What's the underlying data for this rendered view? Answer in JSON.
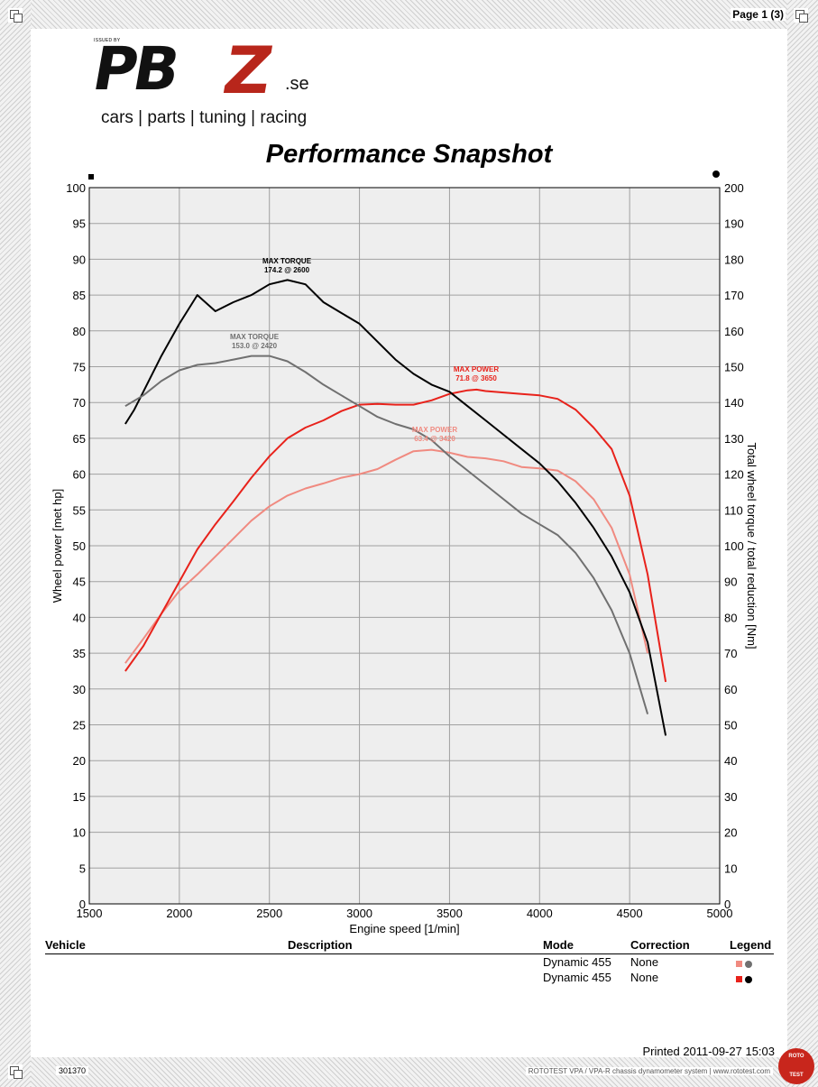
{
  "page": {
    "label": "Page 1 (3)"
  },
  "logo": {
    "issued_by": "ISSUED BY",
    "brand_main": "PB",
    "brand_accent": "Z",
    "brand_suffix": ".se",
    "tagline": "cars | parts | tuning | racing"
  },
  "colors": {
    "power_light": "#f08a80",
    "power_dark": "#e8221b",
    "torque_dark": "#000000",
    "torque_light": "#707070",
    "grid": "#a0a0a0"
  },
  "chart_data": {
    "type": "line",
    "title": "Performance Snapshot",
    "xlabel": "Engine speed [1/min]",
    "ylabel": "Wheel power [met hp]",
    "y2label": "Total wheel torque / total reduction [Nm]",
    "xlim": [
      1500,
      5000
    ],
    "ylim": [
      0,
      100
    ],
    "y2lim": [
      0,
      200
    ],
    "x_ticks": [
      1500,
      2000,
      2500,
      3000,
      3500,
      4000,
      4500,
      5000
    ],
    "y_ticks": [
      0,
      5,
      10,
      15,
      20,
      25,
      30,
      35,
      40,
      45,
      50,
      55,
      60,
      65,
      70,
      75,
      80,
      85,
      90,
      95,
      100
    ],
    "y2_ticks": [
      0,
      10,
      20,
      30,
      40,
      50,
      60,
      70,
      80,
      90,
      100,
      110,
      120,
      130,
      140,
      150,
      160,
      170,
      180,
      190,
      200
    ],
    "grid": true,
    "series": [
      {
        "axis": "left",
        "color": "#f08a80",
        "x": [
          1700,
          1800,
          1900,
          2000,
          2100,
          2200,
          2300,
          2400,
          2500,
          2600,
          2700,
          2800,
          2900,
          3000,
          3100,
          3200,
          3300,
          3400,
          3500,
          3600,
          3700,
          3800,
          3900,
          4000,
          4100,
          4200,
          4300,
          4400,
          4500,
          4600
        ],
        "y": [
          33.6,
          37.0,
          40.5,
          43.7,
          46.0,
          48.5,
          51.0,
          53.5,
          55.5,
          57.0,
          58.0,
          58.7,
          59.5,
          60.0,
          60.7,
          62.0,
          63.2,
          63.4,
          63.0,
          62.4,
          62.2,
          61.8,
          61.0,
          60.8,
          60.5,
          59.0,
          56.5,
          52.5,
          46.0,
          35.0
        ]
      },
      {
        "axis": "left",
        "color": "#e8221b",
        "x": [
          1700,
          1800,
          1900,
          2000,
          2100,
          2200,
          2300,
          2400,
          2500,
          2600,
          2700,
          2800,
          2900,
          3000,
          3100,
          3200,
          3300,
          3400,
          3500,
          3600,
          3650,
          3700,
          3800,
          3900,
          4000,
          4100,
          4200,
          4300,
          4400,
          4500,
          4600,
          4700
        ],
        "y": [
          32.5,
          36.0,
          40.5,
          45.0,
          49.5,
          53.0,
          56.2,
          59.5,
          62.5,
          65.0,
          66.5,
          67.5,
          68.8,
          69.7,
          69.8,
          69.7,
          69.7,
          70.3,
          71.2,
          71.7,
          71.8,
          71.6,
          71.4,
          71.2,
          71.0,
          70.5,
          69.0,
          66.5,
          63.5,
          57.0,
          46.0,
          31.0
        ]
      },
      {
        "axis": "right",
        "color": "#000000",
        "x": [
          1700,
          1750,
          1800,
          1900,
          2000,
          2100,
          2200,
          2300,
          2400,
          2500,
          2600,
          2700,
          2800,
          2900,
          3000,
          3100,
          3200,
          3300,
          3400,
          3500,
          3600,
          3700,
          3800,
          3900,
          4000,
          4100,
          4200,
          4300,
          4400,
          4500,
          4600,
          4700
        ],
        "y": [
          134,
          138,
          143,
          153,
          162,
          170,
          165.5,
          168,
          170,
          173,
          174.2,
          173,
          168,
          165,
          162,
          157,
          152,
          148,
          145,
          143,
          139,
          135,
          131,
          127,
          123,
          118,
          112,
          105,
          97,
          87,
          73,
          47
        ]
      },
      {
        "axis": "right",
        "color": "#707070",
        "x": [
          1700,
          1800,
          1900,
          2000,
          2100,
          2200,
          2300,
          2400,
          2420,
          2500,
          2600,
          2700,
          2800,
          2900,
          3000,
          3100,
          3200,
          3300,
          3400,
          3500,
          3600,
          3700,
          3800,
          3900,
          4000,
          4100,
          4200,
          4300,
          4400,
          4500,
          4600
        ],
        "y": [
          139,
          142,
          146,
          149,
          150.5,
          151,
          152,
          153,
          153.0,
          153,
          151.5,
          148.5,
          145,
          142,
          139,
          136,
          134,
          132.5,
          129.5,
          125,
          121,
          117,
          113,
          109,
          106,
          103,
          98,
          91,
          82,
          70,
          53
        ]
      }
    ],
    "annotations": [
      {
        "text": "MAX TORQUE",
        "value": "174.2 @ 2600",
        "color": "#000000"
      },
      {
        "text": "MAX TORQUE",
        "value": "153.0 @ 2420",
        "color": "#707070"
      },
      {
        "text": "MAX POWER",
        "value": "71.8 @ 3650",
        "color": "#e8221b"
      },
      {
        "text": "MAX POWER",
        "value": "63.4 @ 3420",
        "color": "#f08a80"
      }
    ]
  },
  "legend": {
    "headers": {
      "vehicle": "Vehicle",
      "description": "Description",
      "mode": "Mode",
      "correction": "Correction",
      "legend": "Legend"
    },
    "rows": [
      {
        "mode": "Dynamic 455",
        "correction": "None",
        "swatch": "#f08a80",
        "dot": "#707070"
      },
      {
        "mode": "Dynamic 455",
        "correction": "None",
        "swatch": "#e8221b",
        "dot": "#000000"
      }
    ]
  },
  "footer": {
    "printed": "Printed 2011-09-27 15:03",
    "doc_id": "301370",
    "system": "ROTOTEST VPA / VPA-R chassis dynamometer system | www.rototest.com",
    "logo_top": "ROTO",
    "logo_bottom": "TEST"
  }
}
